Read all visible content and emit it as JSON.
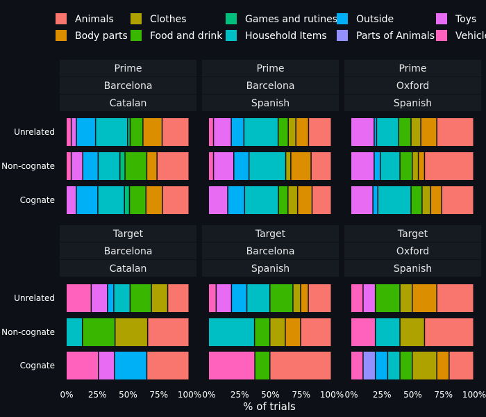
{
  "chart_data": {
    "type": "bar",
    "orientation": "horizontal",
    "stacked": "percent",
    "xlabel": "% of trials",
    "x_ticks": [
      "0%",
      "25%",
      "50%",
      "75%",
      "100%"
    ],
    "xlim": [
      0,
      100
    ],
    "row_labels": [
      "Unrelated",
      "Non-cognate",
      "Cognate"
    ],
    "legend": {
      "position": "top",
      "items": [
        {
          "name": "Animals",
          "color": "#F8766D"
        },
        {
          "name": "Body parts",
          "color": "#DB8E00"
        },
        {
          "name": "Clothes",
          "color": "#AEA200"
        },
        {
          "name": "Food and drink",
          "color": "#39B600"
        },
        {
          "name": "Games and rutines",
          "color": "#00BF7D"
        },
        {
          "name": "Household Items",
          "color": "#00BFC4"
        },
        {
          "name": "Outside",
          "color": "#00B0F6"
        },
        {
          "name": "Parts of Animals",
          "color": "#9590FF"
        },
        {
          "name": "Toys",
          "color": "#E76BF3"
        },
        {
          "name": "Vehicles",
          "color": "#FF62BC"
        }
      ]
    },
    "panels": [
      {
        "strip": [
          "Prime",
          "Barcelona",
          "Catalan"
        ],
        "rows": [
          {
            "label": "Unrelated",
            "segments": [
              {
                "cat": "Animals",
                "value": 21
              },
              {
                "cat": "Body parts",
                "value": 15
              },
              {
                "cat": "Food and drink",
                "value": 10
              },
              {
                "cat": "Games and rutines",
                "value": 2
              },
              {
                "cat": "Household Items",
                "value": 25
              },
              {
                "cat": "Outside",
                "value": 15
              },
              {
                "cat": "Toys",
                "value": 4
              },
              {
                "cat": "Vehicles",
                "value": 4
              }
            ]
          },
          {
            "label": "Non-cognate",
            "segments": [
              {
                "cat": "Animals",
                "value": 25
              },
              {
                "cat": "Body parts",
                "value": 8
              },
              {
                "cat": "Food and drink",
                "value": 17
              },
              {
                "cat": "Games and rutines",
                "value": 4
              },
              {
                "cat": "Household Items",
                "value": 17
              },
              {
                "cat": "Outside",
                "value": 12
              },
              {
                "cat": "Toys",
                "value": 9
              },
              {
                "cat": "Vehicles",
                "value": 4
              }
            ]
          },
          {
            "label": "Cognate",
            "segments": [
              {
                "cat": "Animals",
                "value": 21
              },
              {
                "cat": "Body parts",
                "value": 13
              },
              {
                "cat": "Food and drink",
                "value": 13
              },
              {
                "cat": "Games and rutines",
                "value": 4
              },
              {
                "cat": "Household Items",
                "value": 21
              },
              {
                "cat": "Outside",
                "value": 17
              },
              {
                "cat": "Toys",
                "value": 8
              }
            ]
          }
        ]
      },
      {
        "strip": [
          "Prime",
          "Barcelona",
          "Spanish"
        ],
        "rows": [
          {
            "label": "Unrelated",
            "segments": [
              {
                "cat": "Animals",
                "value": 18
              },
              {
                "cat": "Body parts",
                "value": 10
              },
              {
                "cat": "Clothes",
                "value": 6
              },
              {
                "cat": "Food and drink",
                "value": 8
              },
              {
                "cat": "Household Items",
                "value": 27
              },
              {
                "cat": "Outside",
                "value": 10
              },
              {
                "cat": "Toys",
                "value": 14
              },
              {
                "cat": "Vehicles",
                "value": 4
              }
            ]
          },
          {
            "label": "Non-cognate",
            "segments": [
              {
                "cat": "Animals",
                "value": 16
              },
              {
                "cat": "Body parts",
                "value": 16
              },
              {
                "cat": "Clothes",
                "value": 4
              },
              {
                "cat": "Household Items",
                "value": 29
              },
              {
                "cat": "Outside",
                "value": 12
              },
              {
                "cat": "Toys",
                "value": 16
              },
              {
                "cat": "Vehicles",
                "value": 4
              }
            ]
          },
          {
            "label": "Cognate",
            "segments": [
              {
                "cat": "Animals",
                "value": 16
              },
              {
                "cat": "Body parts",
                "value": 12
              },
              {
                "cat": "Clothes",
                "value": 8
              },
              {
                "cat": "Food and drink",
                "value": 8
              },
              {
                "cat": "Household Items",
                "value": 28
              },
              {
                "cat": "Outside",
                "value": 14
              },
              {
                "cat": "Toys",
                "value": 16
              }
            ]
          }
        ]
      },
      {
        "strip": [
          "Prime",
          "Oxford",
          "Spanish"
        ],
        "rows": [
          {
            "label": "Unrelated",
            "segments": [
              {
                "cat": "Animals",
                "value": 30
              },
              {
                "cat": "Body parts",
                "value": 13
              },
              {
                "cat": "Clothes",
                "value": 8
              },
              {
                "cat": "Food and drink",
                "value": 10
              },
              {
                "cat": "Household Items",
                "value": 18
              },
              {
                "cat": "Outside",
                "value": 2
              },
              {
                "cat": "Toys",
                "value": 19
              }
            ]
          },
          {
            "label": "Non-cognate",
            "segments": [
              {
                "cat": "Animals",
                "value": 40
              },
              {
                "cat": "Body parts",
                "value": 5
              },
              {
                "cat": "Clothes",
                "value": 5
              },
              {
                "cat": "Food and drink",
                "value": 10
              },
              {
                "cat": "Household Items",
                "value": 16
              },
              {
                "cat": "Outside",
                "value": 5
              },
              {
                "cat": "Toys",
                "value": 19
              }
            ]
          },
          {
            "label": "Cognate",
            "segments": [
              {
                "cat": "Animals",
                "value": 26
              },
              {
                "cat": "Body parts",
                "value": 9
              },
              {
                "cat": "Clothes",
                "value": 7
              },
              {
                "cat": "Food and drink",
                "value": 9
              },
              {
                "cat": "Household Items",
                "value": 27
              },
              {
                "cat": "Outside",
                "value": 4
              },
              {
                "cat": "Toys",
                "value": 18
              }
            ]
          }
        ]
      },
      {
        "strip": [
          "Target",
          "Barcelona",
          "Catalan"
        ],
        "rows": [
          {
            "label": "Unrelated",
            "segments": [
              {
                "cat": "Animals",
                "value": 17
              },
              {
                "cat": "Clothes",
                "value": 13
              },
              {
                "cat": "Food and drink",
                "value": 17
              },
              {
                "cat": "Household Items",
                "value": 13
              },
              {
                "cat": "Outside",
                "value": 5
              },
              {
                "cat": "Toys",
                "value": 13
              },
              {
                "cat": "Vehicles",
                "value": 20
              }
            ]
          },
          {
            "label": "Non-cognate",
            "segments": [
              {
                "cat": "Animals",
                "value": 33
              },
              {
                "cat": "Clothes",
                "value": 26
              },
              {
                "cat": "Food and drink",
                "value": 26
              },
              {
                "cat": "Household Items",
                "value": 13
              }
            ]
          },
          {
            "label": "Cognate",
            "segments": [
              {
                "cat": "Animals",
                "value": 34
              },
              {
                "cat": "Outside",
                "value": 26
              },
              {
                "cat": "Toys",
                "value": 13
              },
              {
                "cat": "Vehicles",
                "value": 26
              }
            ]
          }
        ]
      },
      {
        "strip": [
          "Target",
          "Barcelona",
          "Spanish"
        ],
        "rows": [
          {
            "label": "Unrelated",
            "segments": [
              {
                "cat": "Animals",
                "value": 18
              },
              {
                "cat": "Body parts",
                "value": 6
              },
              {
                "cat": "Clothes",
                "value": 6
              },
              {
                "cat": "Food and drink",
                "value": 18
              },
              {
                "cat": "Household Items",
                "value": 18
              },
              {
                "cat": "Outside",
                "value": 12
              },
              {
                "cat": "Toys",
                "value": 12
              },
              {
                "cat": "Vehicles",
                "value": 6
              }
            ]
          },
          {
            "label": "Non-cognate",
            "segments": [
              {
                "cat": "Animals",
                "value": 24
              },
              {
                "cat": "Body parts",
                "value": 12
              },
              {
                "cat": "Clothes",
                "value": 12
              },
              {
                "cat": "Food and drink",
                "value": 12
              },
              {
                "cat": "Household Items",
                "value": 36
              }
            ]
          },
          {
            "label": "Cognate",
            "segments": [
              {
                "cat": "Animals",
                "value": 49
              },
              {
                "cat": "Food and drink",
                "value": 12
              },
              {
                "cat": "Vehicles",
                "value": 37
              }
            ]
          }
        ]
      },
      {
        "strip": [
          "Target",
          "Oxford",
          "Spanish"
        ],
        "rows": [
          {
            "label": "Unrelated",
            "segments": [
              {
                "cat": "Animals",
                "value": 30
              },
              {
                "cat": "Body parts",
                "value": 20
              },
              {
                "cat": "Clothes",
                "value": 10
              },
              {
                "cat": "Food and drink",
                "value": 20
              },
              {
                "cat": "Toys",
                "value": 10
              },
              {
                "cat": "Vehicles",
                "value": 10
              }
            ]
          },
          {
            "label": "Non-cognate",
            "segments": [
              {
                "cat": "Animals",
                "value": 40
              },
              {
                "cat": "Clothes",
                "value": 20
              },
              {
                "cat": "Household Items",
                "value": 20
              },
              {
                "cat": "Vehicles",
                "value": 20
              }
            ]
          },
          {
            "label": "Cognate",
            "segments": [
              {
                "cat": "Animals",
                "value": 20
              },
              {
                "cat": "Body parts",
                "value": 10
              },
              {
                "cat": "Clothes",
                "value": 20
              },
              {
                "cat": "Food and drink",
                "value": 10
              },
              {
                "cat": "Household Items",
                "value": 10
              },
              {
                "cat": "Outside",
                "value": 10
              },
              {
                "cat": "Parts of Animals",
                "value": 10
              },
              {
                "cat": "Vehicles",
                "value": 10
              }
            ]
          }
        ]
      }
    ]
  }
}
